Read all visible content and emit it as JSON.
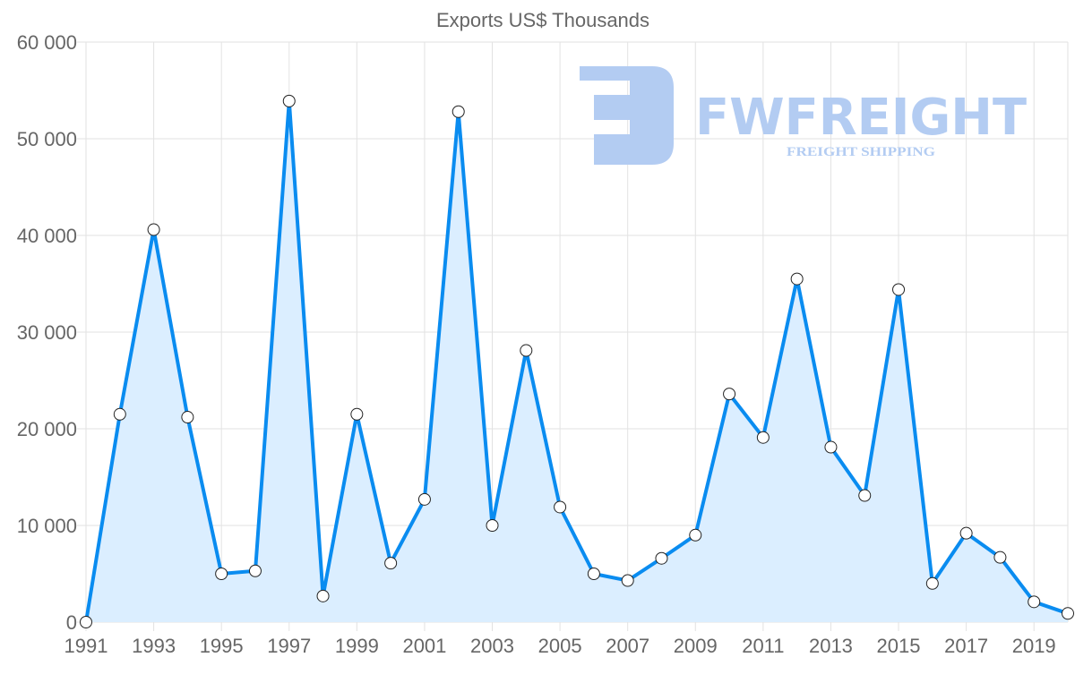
{
  "chart_data": {
    "type": "line",
    "title": "Exports US$ Thousands",
    "xlabel": "",
    "ylabel": "",
    "x": [
      1991,
      1992,
      1993,
      1994,
      1995,
      1996,
      1997,
      1998,
      1999,
      2000,
      2001,
      2002,
      2003,
      2004,
      2005,
      2006,
      2007,
      2008,
      2009,
      2010,
      2011,
      2012,
      2013,
      2014,
      2015,
      2016,
      2017,
      2018,
      2019,
      2020
    ],
    "series": [
      {
        "name": "Exports US$ Thousands",
        "values": [
          0,
          21500,
          40600,
          21200,
          5000,
          5300,
          53900,
          2700,
          21500,
          6100,
          12700,
          52800,
          10000,
          28100,
          11900,
          5000,
          4300,
          6600,
          9000,
          23600,
          19100,
          35500,
          18100,
          13100,
          34400,
          4000,
          9200,
          6700,
          2100,
          900
        ]
      }
    ],
    "ylim": [
      0,
      60000
    ],
    "yticks": [
      0,
      10000,
      20000,
      30000,
      40000,
      50000,
      60000
    ],
    "ytick_labels": [
      "0",
      "10 000",
      "20 000",
      "30 000",
      "40 000",
      "50 000",
      "60 000"
    ],
    "xtick_labels": [
      "1991",
      "1993",
      "1995",
      "1997",
      "1999",
      "2001",
      "2003",
      "2005",
      "2007",
      "2009",
      "2011",
      "2013",
      "2015",
      "2017",
      "2019"
    ],
    "grid": true,
    "line_color": "#0a8cf0",
    "fill_color": "#dbeeff"
  },
  "watermark": {
    "brand": "FWFREIGHT",
    "tagline": "FREIGHT SHIPPING",
    "color": "#b3ccf2"
  }
}
